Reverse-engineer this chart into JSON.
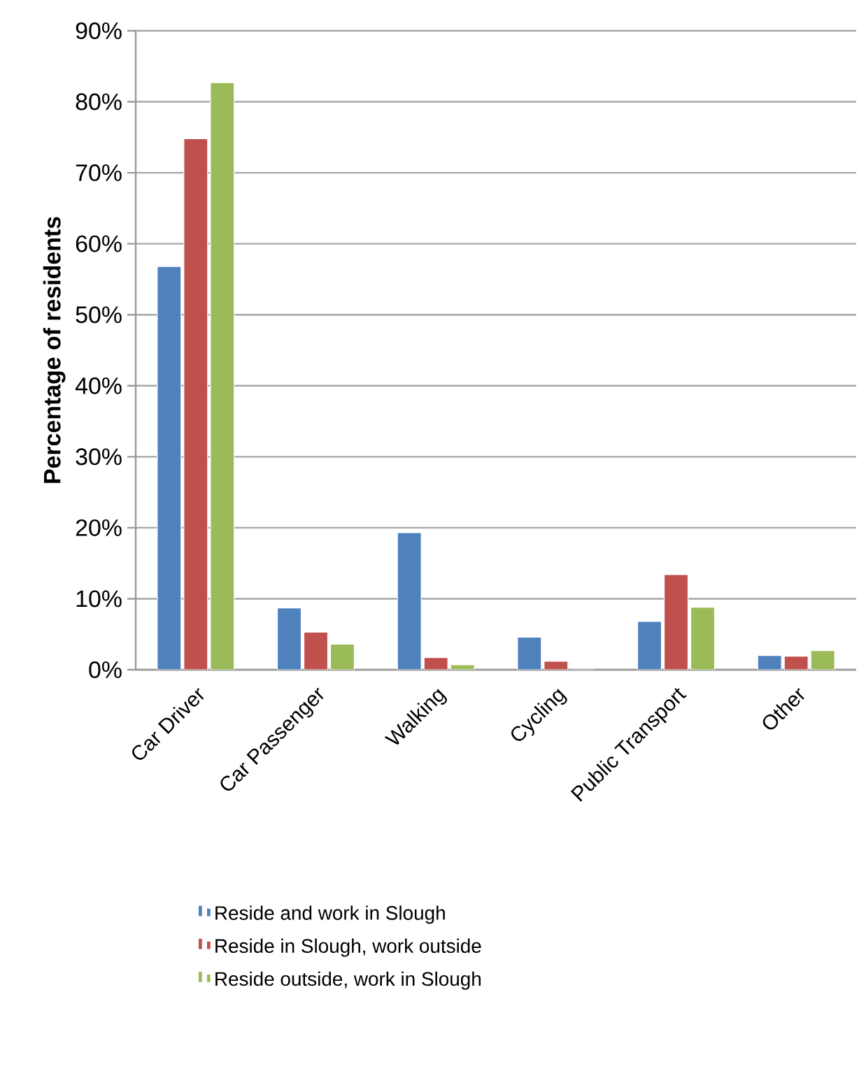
{
  "chart_data": {
    "type": "bar",
    "ylabel": "Percentage of residents",
    "categories": [
      "Car Driver",
      "Car Passenger",
      "Walking",
      "Cycling",
      "Public Transport",
      "Other"
    ],
    "series": [
      {
        "name": "Reside and work in Slough",
        "color": "#4f81bd",
        "values": [
          56.8,
          8.7,
          19.3,
          4.6,
          6.8,
          2.0
        ]
      },
      {
        "name": "Reside in Slough, work outside",
        "color": "#c0504d",
        "values": [
          74.8,
          5.3,
          1.7,
          1.2,
          13.4,
          1.9
        ]
      },
      {
        "name": "Reside outside, work in Slough",
        "color": "#9bbb59",
        "values": [
          82.7,
          3.6,
          0.7,
          0,
          8.8,
          2.7
        ]
      }
    ],
    "ylim": [
      0,
      90
    ],
    "yticks": [
      {
        "value": 0,
        "label": "0%"
      },
      {
        "value": 10,
        "label": "10%"
      },
      {
        "value": 20,
        "label": "20%"
      },
      {
        "value": 30,
        "label": "30%"
      },
      {
        "value": 40,
        "label": "40%"
      },
      {
        "value": 50,
        "label": "50%"
      },
      {
        "value": 60,
        "label": "60%"
      },
      {
        "value": 70,
        "label": "70%"
      },
      {
        "value": 80,
        "label": "80%"
      },
      {
        "value": 90,
        "label": "90%"
      }
    ],
    "grid": "y",
    "legend": "bottom"
  }
}
